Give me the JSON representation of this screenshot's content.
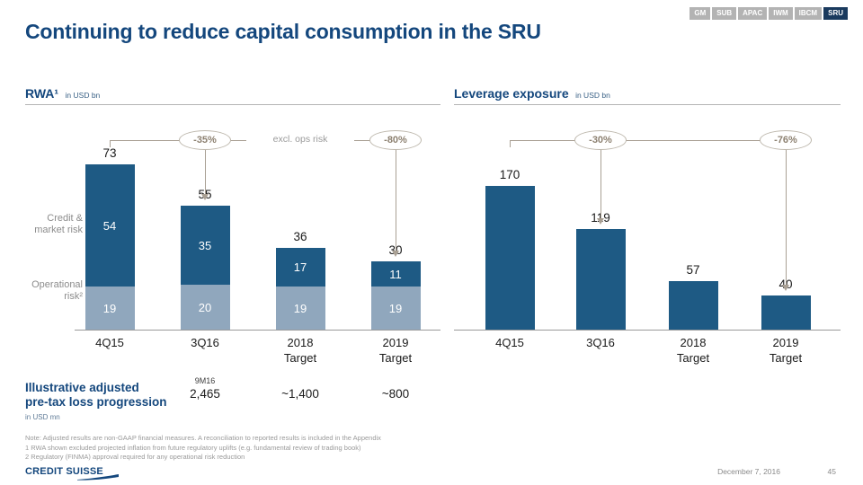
{
  "title": "Continuing to reduce capital consumption in the SRU",
  "tabs": {
    "items": [
      {
        "label": "GM",
        "active": false
      },
      {
        "label": "SUB",
        "active": false
      },
      {
        "label": "APAC",
        "active": false
      },
      {
        "label": "IWM",
        "active": false
      },
      {
        "label": "IBCM",
        "active": false
      },
      {
        "label": "SRU",
        "active": true
      }
    ]
  },
  "colors": {
    "title_blue": "#14477D",
    "bar_dark_blue": "#1E5A84",
    "bar_light_blue": "#90A7BD",
    "annotation_brown": "#8D8171",
    "tab_gray": "#B3B3B3",
    "tab_active_navy": "#1A3A5E"
  },
  "chart_data": [
    {
      "type": "bar",
      "stacked": true,
      "title": "RWA¹",
      "unit": "in USD bn",
      "categories": [
        "4Q15",
        "3Q16",
        "2018\nTarget",
        "2019\nTarget"
      ],
      "series": [
        {
          "name": "Credit &\nmarket risk",
          "values": [
            54,
            35,
            17,
            11
          ]
        },
        {
          "name": "Operational\nrisk²",
          "values": [
            19,
            20,
            19,
            19
          ]
        }
      ],
      "totals": [
        73,
        55,
        36,
        30
      ],
      "ylim": [
        0,
        80
      ],
      "legend_position": "left",
      "grid": false,
      "annotations": [
        {
          "type": "oval",
          "label": "-35%",
          "column": 1
        },
        {
          "type": "text",
          "label": "excl. ops risk"
        },
        {
          "type": "oval",
          "label": "-80%",
          "column": 3
        }
      ]
    },
    {
      "type": "bar",
      "stacked": false,
      "title": "Leverage exposure",
      "unit": "in USD bn",
      "categories": [
        "4Q15",
        "3Q16",
        "2018\nTarget",
        "2019\nTarget"
      ],
      "values": [
        170,
        119,
        57,
        40
      ],
      "ylim": [
        0,
        185
      ],
      "grid": false,
      "annotations": [
        {
          "type": "oval",
          "label": "-30%",
          "column": 1
        },
        {
          "type": "oval",
          "label": "-76%",
          "column": 3
        }
      ]
    }
  ],
  "loss_progression": {
    "label": "Illustrative adjusted\npre-tax loss progression",
    "unit": "in USD mn",
    "period": "9M16",
    "values": [
      "2,465",
      "~1,400",
      "~800"
    ]
  },
  "notes": [
    "Note: Adjusted results are non-GAAP financial measures. A reconciliation to reported results is included in the Appendix",
    "1 RWA shown excluded projected inflation from future regulatory uplifts (e.g. fundamental review of trading book)",
    "2 Regulatory (FINMA) approval required for any operational risk reduction"
  ],
  "footer": {
    "logo": "CREDIT SUISSE",
    "date": "December 7, 2016",
    "page": "45"
  }
}
